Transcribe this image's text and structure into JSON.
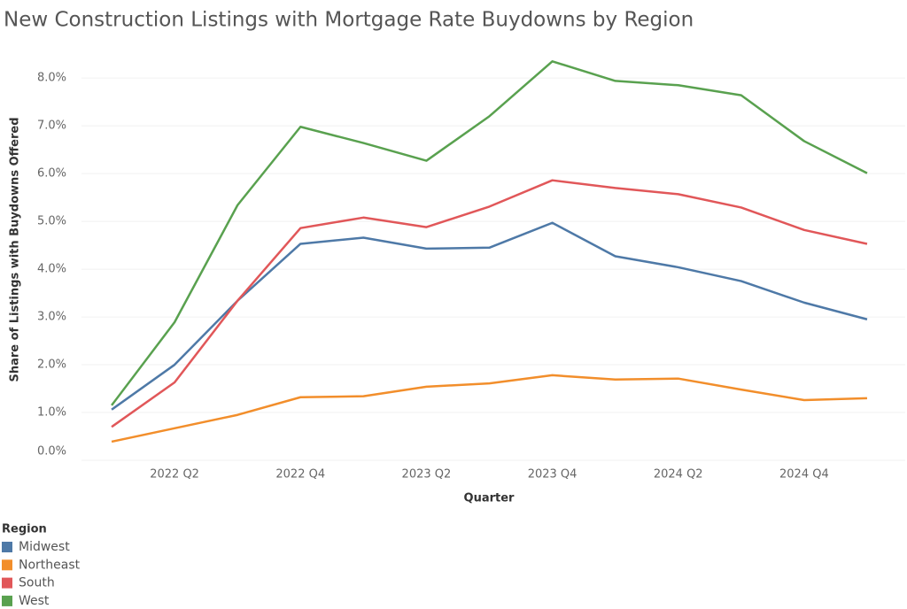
{
  "chart_data": {
    "type": "line",
    "title": "New Construction Listings with Mortgage Rate Buydowns by Region",
    "x_label": "Quarter",
    "y_label": "Share of Listings with Buydowns Offered",
    "legend_title": "Region",
    "categories": [
      null,
      "2022 Q2",
      null,
      "2022 Q4",
      null,
      "2023 Q2",
      null,
      "2023 Q4",
      null,
      "2024 Q2",
      null,
      "2024 Q4",
      null
    ],
    "series": [
      {
        "name": "Midwest",
        "color": "#4e79a7",
        "values": [
          1.06,
          2.0,
          3.34,
          4.53,
          4.66,
          4.43,
          4.45,
          4.97,
          4.27,
          4.04,
          3.75,
          3.3,
          2.95
        ]
      },
      {
        "name": "Northeast",
        "color": "#f28e2b",
        "values": [
          0.39,
          0.67,
          0.95,
          1.32,
          1.34,
          1.54,
          1.61,
          1.78,
          1.69,
          1.71,
          1.48,
          1.26,
          1.3
        ]
      },
      {
        "name": "South",
        "color": "#e15759",
        "values": [
          0.7,
          1.63,
          3.34,
          4.86,
          5.08,
          4.88,
          5.31,
          5.86,
          5.7,
          5.57,
          5.29,
          4.82,
          4.53
        ]
      },
      {
        "name": "West",
        "color": "#59a14f",
        "values": [
          1.15,
          2.89,
          5.34,
          6.98,
          6.64,
          6.27,
          7.2,
          8.35,
          7.94,
          7.85,
          7.64,
          6.68,
          6.01
        ]
      }
    ],
    "ylim": [
      0,
      8.8
    ],
    "yticks": [
      {
        "value": 0,
        "label": "0.0%"
      },
      {
        "value": 1,
        "label": "1.0%"
      },
      {
        "value": 2,
        "label": "2.0%"
      },
      {
        "value": 3,
        "label": "3.0%"
      },
      {
        "value": 4,
        "label": "4.0%"
      },
      {
        "value": 5,
        "label": "5.0%"
      },
      {
        "value": 6,
        "label": "6.0%"
      },
      {
        "value": 7,
        "label": "7.0%"
      },
      {
        "value": 8,
        "label": "8.0%"
      }
    ],
    "grid": true,
    "legend_position": "bottom-left"
  }
}
